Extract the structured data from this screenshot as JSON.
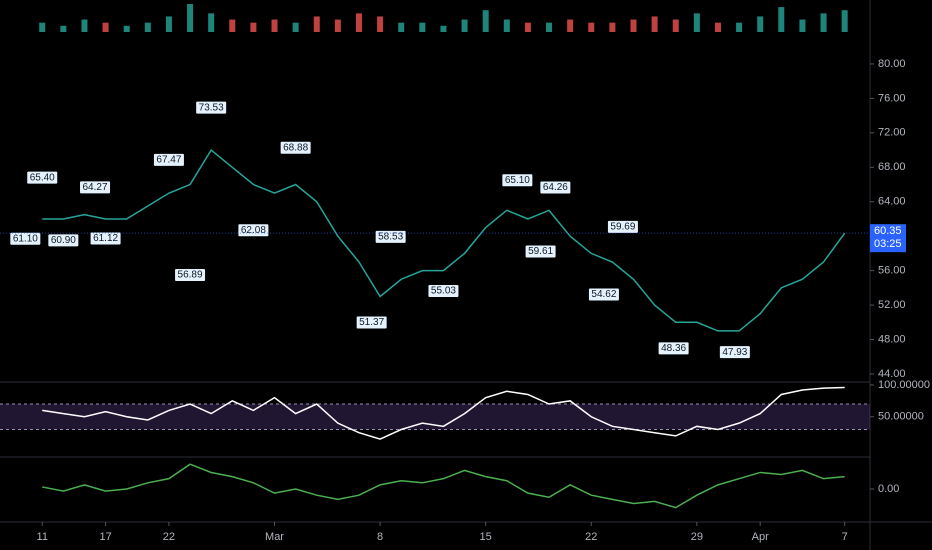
{
  "chart_data": [
    {
      "type": "line",
      "color": "#26a69a",
      "x": [
        0,
        1,
        2,
        3,
        4,
        5,
        6,
        7,
        8,
        9,
        10,
        11,
        12,
        13,
        14,
        15,
        16,
        17,
        18,
        19,
        20,
        21,
        22,
        23,
        24,
        25,
        26,
        27,
        28,
        29,
        30,
        31,
        32,
        33,
        34,
        35,
        36,
        37,
        38
      ],
      "values": [
        62,
        62,
        62.5,
        62,
        62,
        63.5,
        65,
        66,
        70,
        68,
        66,
        65,
        66,
        64,
        60,
        57,
        53,
        55,
        56,
        56,
        58,
        61,
        63,
        62,
        63,
        60,
        58,
        57,
        55,
        52,
        50,
        50,
        49,
        49,
        51,
        54,
        55,
        57,
        60.35
      ],
      "volume": [
        3,
        2,
        4,
        3,
        2,
        3,
        5,
        9,
        6,
        4,
        3,
        4,
        3,
        5,
        4,
        6,
        5,
        3,
        3,
        2,
        4,
        7,
        4,
        3,
        3,
        4,
        3,
        3,
        4,
        5,
        4,
        6,
        3,
        3,
        5,
        8,
        4,
        6,
        7
      ],
      "xlim": [
        -2,
        39.2
      ],
      "ylim": [
        43.3,
        82.2
      ],
      "xticks": [
        {
          "value": 0,
          "label": "11"
        },
        {
          "value": 3,
          "label": "17"
        },
        {
          "value": 6,
          "label": "22"
        },
        {
          "value": 11,
          "label": "Mar"
        },
        {
          "value": 16,
          "label": "8"
        },
        {
          "value": 21,
          "label": "15"
        },
        {
          "value": 26,
          "label": "22"
        },
        {
          "value": 31,
          "label": "29"
        },
        {
          "value": 34,
          "label": "Apr"
        },
        {
          "value": 38,
          "label": "7"
        }
      ],
      "yticks": [
        {
          "value": 44,
          "label": "44.00"
        },
        {
          "value": 48,
          "label": "48.00"
        },
        {
          "value": 52,
          "label": "52.00"
        },
        {
          "value": 56,
          "label": "56.00"
        },
        {
          "value": 60,
          "label": "60.00"
        },
        {
          "value": 64,
          "label": "64.00"
        },
        {
          "value": 68,
          "label": "68.00"
        },
        {
          "value": 72,
          "label": "72.00"
        },
        {
          "value": 76,
          "label": "76.00"
        },
        {
          "value": 80,
          "label": "80.00"
        }
      ],
      "annotations": [
        {
          "x": -0.8,
          "value": 61.1,
          "label": "61.10"
        },
        {
          "x": 0,
          "value": 65.4,
          "label": "65.40"
        },
        {
          "x": 1,
          "value": 60.9,
          "label": "60.90"
        },
        {
          "x": 2.5,
          "value": 64.27,
          "label": "64.27"
        },
        {
          "x": 3,
          "value": 61.12,
          "label": "61.12"
        },
        {
          "x": 6,
          "value": 67.47,
          "label": "67.47"
        },
        {
          "x": 8,
          "value": 73.53,
          "label": "73.53"
        },
        {
          "x": 7,
          "value": 56.89,
          "label": "56.89"
        },
        {
          "x": 10,
          "value": 62.08,
          "label": "62.08"
        },
        {
          "x": 12,
          "value": 68.88,
          "label": "68.88"
        },
        {
          "x": 15.6,
          "value": 51.37,
          "label": "51.37"
        },
        {
          "x": 16.5,
          "value": 58.53,
          "label": "58.53"
        },
        {
          "x": 19,
          "value": 55.03,
          "label": "55.03"
        },
        {
          "x": 22.5,
          "value": 65.1,
          "label": "65.10"
        },
        {
          "x": 23.6,
          "value": 59.61,
          "label": "59.61"
        },
        {
          "x": 24.3,
          "value": 64.26,
          "label": "64.26"
        },
        {
          "x": 27.5,
          "value": 59.69,
          "label": "59.69"
        },
        {
          "x": 26.6,
          "value": 54.62,
          "label": "54.62"
        },
        {
          "x": 29.9,
          "value": 48.36,
          "label": "48.36"
        },
        {
          "x": 32.8,
          "value": 47.93,
          "label": "47.93"
        }
      ],
      "current_price": {
        "value": 60.35,
        "label": "60.35"
      },
      "countdown": "03:25"
    },
    {
      "type": "line",
      "color": "#ffffff",
      "values": [
        60,
        55,
        50,
        58,
        50,
        45,
        60,
        70,
        55,
        75,
        60,
        80,
        55,
        70,
        40,
        25,
        15,
        30,
        40,
        35,
        55,
        80,
        90,
        85,
        70,
        75,
        50,
        35,
        30,
        25,
        20,
        35,
        30,
        40,
        55,
        85,
        92,
        95,
        96
      ],
      "ylim": [
        -10,
        103
      ],
      "band": [
        30,
        70
      ],
      "yticks": [
        {
          "value": 50,
          "label": "50.00000"
        },
        {
          "value": 100,
          "label": "100.00000"
        }
      ]
    },
    {
      "type": "line",
      "color": "#4caf50",
      "values": [
        0.1,
        -0.1,
        0.2,
        -0.1,
        0,
        0.3,
        0.5,
        1.2,
        0.8,
        0.6,
        0.3,
        -0.2,
        0,
        -0.3,
        -0.5,
        -0.3,
        0.2,
        0.4,
        0.3,
        0.5,
        0.9,
        0.6,
        0.4,
        -0.2,
        -0.4,
        0.2,
        -0.3,
        -0.5,
        -0.7,
        -0.6,
        -0.9,
        -0.3,
        0.2,
        0.5,
        0.8,
        0.7,
        0.9,
        0.5,
        0.6
      ],
      "ylim": [
        -1.5,
        1.5
      ],
      "yticks": [
        {
          "value": 0,
          "label": "0.00"
        }
      ]
    }
  ]
}
